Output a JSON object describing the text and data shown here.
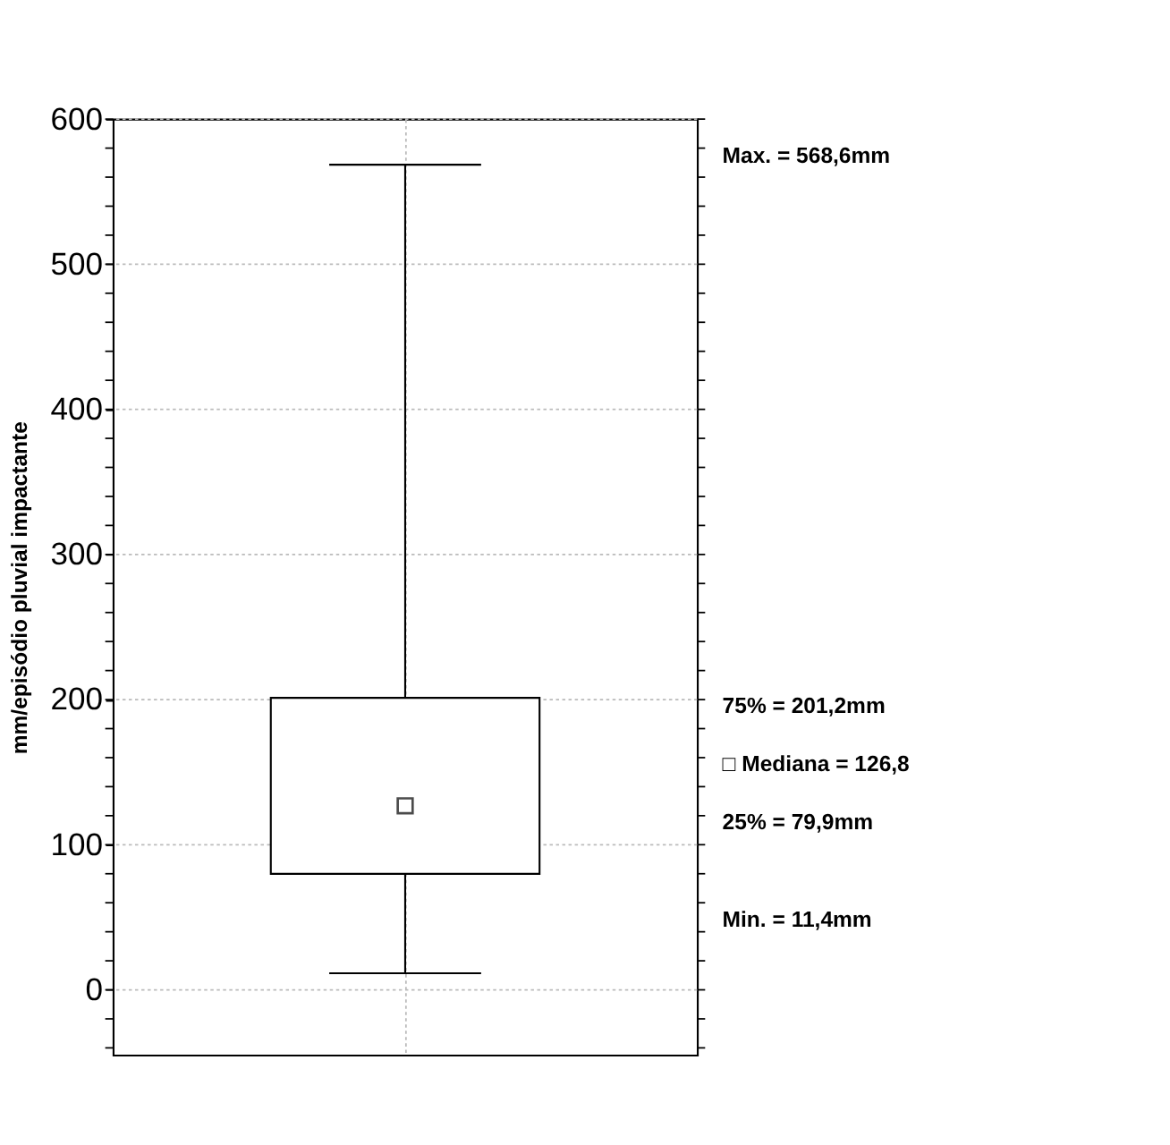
{
  "chart_data": {
    "type": "box",
    "ylabel": "mm/episódio pluvial impactante",
    "categories": [
      null
    ],
    "boxes": [
      {
        "low": 11.4,
        "q1": 79.9,
        "median": 126.8,
        "q3": 201.2,
        "high": 568.6
      }
    ],
    "ylim": [
      -45,
      600
    ],
    "yticks": [
      {
        "value": -40,
        "label": null
      },
      {
        "value": -20,
        "label": null
      },
      0,
      {
        "value": 20,
        "label": null
      },
      {
        "value": 40,
        "label": null
      },
      {
        "value": 60,
        "label": null
      },
      {
        "value": 80,
        "label": null
      },
      100,
      {
        "value": 120,
        "label": null
      },
      {
        "value": 140,
        "label": null
      },
      {
        "value": 160,
        "label": null
      },
      {
        "value": 180,
        "label": null
      },
      200,
      {
        "value": 220,
        "label": null
      },
      {
        "value": 240,
        "label": null
      },
      {
        "value": 260,
        "label": null
      },
      {
        "value": 280,
        "label": null
      },
      300,
      {
        "value": 320,
        "label": null
      },
      {
        "value": 340,
        "label": null
      },
      {
        "value": 360,
        "label": null
      },
      {
        "value": 380,
        "label": null
      },
      400,
      {
        "value": 420,
        "label": null
      },
      {
        "value": 440,
        "label": null
      },
      {
        "value": 460,
        "label": null
      },
      {
        "value": 480,
        "label": null
      },
      500,
      {
        "value": 520,
        "label": null
      },
      {
        "value": 540,
        "label": null
      },
      {
        "value": 560,
        "label": null
      },
      {
        "value": 580,
        "label": null
      },
      600
    ],
    "grid": true,
    "marker": "square",
    "annotations": [
      "Max. = 568,6mm",
      "75% = 201,2mm",
      "□ Mediana = 126,8",
      "25% = 79,9mm",
      "Min. = 11,4mm"
    ]
  }
}
